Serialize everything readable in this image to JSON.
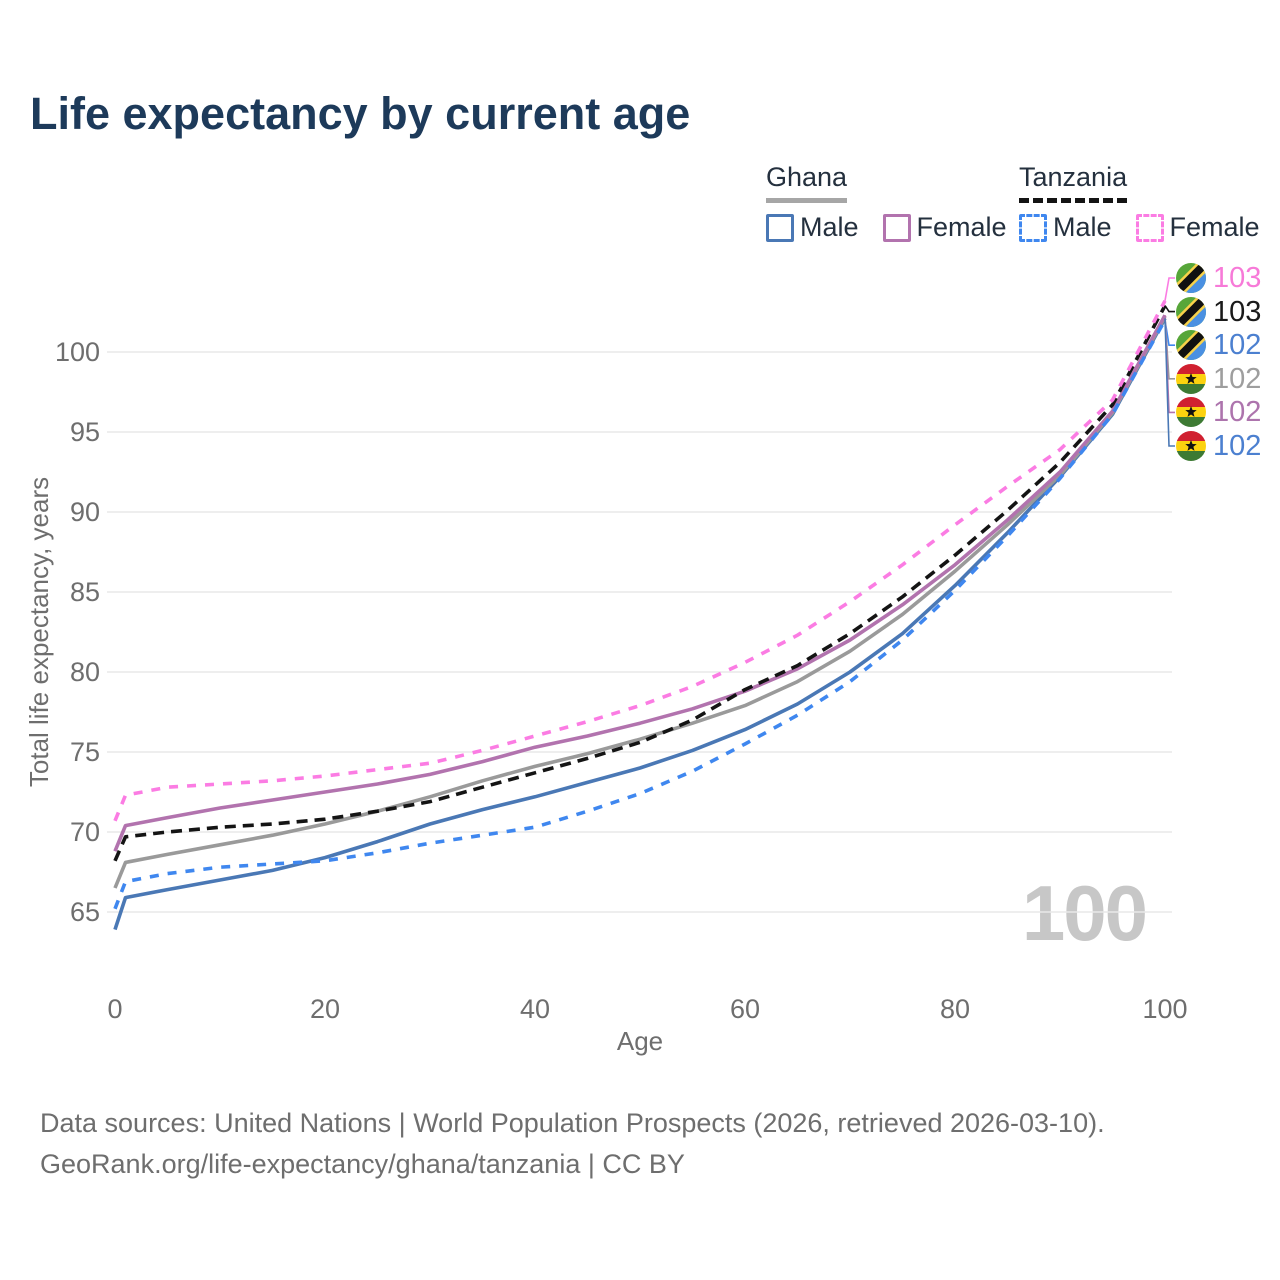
{
  "title": "Life expectancy by current age",
  "legend": {
    "groups": [
      {
        "key": "ghana",
        "country": "Ghana",
        "line_style": "solid",
        "underline_color": "#a6a6a6",
        "items": [
          {
            "label": "Male",
            "color": "#4a78b5",
            "dashed": false,
            "series": "gh_male"
          },
          {
            "label": "Female",
            "color": "#b273ae",
            "dashed": false,
            "series": "gh_female"
          }
        ]
      },
      {
        "key": "tanzania",
        "country": "Tanzania",
        "line_style": "dashed",
        "underline_color": "#141414",
        "items": [
          {
            "label": "Male",
            "color": "#3f87ef",
            "dashed": true,
            "series": "tz_male"
          },
          {
            "label": "Female",
            "color": "#fb7ce3",
            "dashed": true,
            "series": "tz_female"
          }
        ]
      }
    ]
  },
  "watermark": "100",
  "footer": {
    "line1": "Data sources: United Nations | World Population Prospects (2026, retrieved 2026-03-10).",
    "line2": "GeoRank.org/life-expectancy/ghana/tanzania | CC BY"
  },
  "chart_data": {
    "type": "line",
    "title": "Life expectancy by current age",
    "xlabel": "Age",
    "ylabel": "Total life expectancy, years",
    "x_ticks": [
      0,
      20,
      40,
      60,
      80,
      100
    ],
    "y_ticks": [
      65,
      70,
      75,
      80,
      85,
      90,
      95,
      100
    ],
    "xlim": [
      0,
      100
    ],
    "ylim": [
      63.5,
      103.5
    ],
    "grid": "horizontal-only",
    "legend_position": "top-right",
    "ages": [
      0,
      1,
      5,
      10,
      15,
      20,
      25,
      30,
      35,
      40,
      45,
      50,
      55,
      60,
      65,
      70,
      75,
      80,
      85,
      90,
      95,
      100
    ],
    "series": [
      {
        "key": "gh_male",
        "name": "Ghana Male",
        "country": "Ghana",
        "sex": "Male",
        "color": "#4a78b5",
        "dashed": false,
        "values": [
          63.9,
          65.9,
          66.4,
          67.0,
          67.6,
          68.4,
          69.4,
          70.5,
          71.4,
          72.2,
          73.1,
          74.0,
          75.1,
          76.4,
          78.0,
          80.0,
          82.4,
          85.4,
          88.7,
          92.2,
          96.1,
          102.1
        ]
      },
      {
        "key": "gh_total",
        "name": "Ghana Total",
        "country": "Ghana",
        "sex": "Both",
        "color": "#9a9a9a",
        "dashed": false,
        "values": [
          66.5,
          68.1,
          68.6,
          69.2,
          69.8,
          70.5,
          71.3,
          72.2,
          73.2,
          74.1,
          74.9,
          75.8,
          76.8,
          77.9,
          79.4,
          81.3,
          83.6,
          86.3,
          89.2,
          92.3,
          96.2,
          102.2
        ]
      },
      {
        "key": "gh_female",
        "name": "Ghana Female",
        "country": "Ghana",
        "sex": "Female",
        "color": "#b273ae",
        "dashed": false,
        "values": [
          68.8,
          70.4,
          70.9,
          71.5,
          72.0,
          72.5,
          73.0,
          73.6,
          74.4,
          75.3,
          76.0,
          76.8,
          77.7,
          78.8,
          80.2,
          82.0,
          84.2,
          86.7,
          89.5,
          92.5,
          96.3,
          102.3
        ]
      },
      {
        "key": "tz_male",
        "name": "Tanzania Male",
        "country": "Tanzania",
        "sex": "Male",
        "color": "#3f87ef",
        "dashed": true,
        "values": [
          65.2,
          66.9,
          67.4,
          67.8,
          68.0,
          68.2,
          68.7,
          69.3,
          69.8,
          70.3,
          71.3,
          72.4,
          73.8,
          75.5,
          77.3,
          79.4,
          82.0,
          85.1,
          88.5,
          92.1,
          96.1,
          102.0
        ]
      },
      {
        "key": "tz_total",
        "name": "Tanzania Total",
        "country": "Tanzania",
        "sex": "Both",
        "color": "#141414",
        "dashed": true,
        "values": [
          68.2,
          69.7,
          70.0,
          70.3,
          70.5,
          70.8,
          71.3,
          71.9,
          72.8,
          73.7,
          74.6,
          75.6,
          77.0,
          78.9,
          80.4,
          82.4,
          84.7,
          87.3,
          90.1,
          93.1,
          96.7,
          102.9
        ]
      },
      {
        "key": "tz_female",
        "name": "Tanzania Female",
        "country": "Tanzania",
        "sex": "Female",
        "color": "#fb7ce3",
        "dashed": true,
        "values": [
          70.7,
          72.3,
          72.8,
          73.0,
          73.2,
          73.5,
          73.9,
          74.3,
          75.1,
          76.0,
          76.9,
          77.9,
          79.1,
          80.6,
          82.3,
          84.4,
          86.7,
          89.2,
          91.6,
          93.9,
          97.0,
          103.2
        ]
      }
    ],
    "end_labels": [
      {
        "series": "tz_female",
        "label": "103",
        "flag": "tanzania",
        "color": "#f77ad8"
      },
      {
        "series": "tz_total",
        "label": "103",
        "flag": "tanzania",
        "color": "#1a1a1a"
      },
      {
        "series": "tz_male",
        "label": "102",
        "flag": "tanzania",
        "color": "#4c80d0"
      },
      {
        "series": "gh_total",
        "label": "102",
        "flag": "ghana",
        "color": "#9e9e9e"
      },
      {
        "series": "gh_female",
        "label": "102",
        "flag": "ghana",
        "color": "#ad74ad"
      },
      {
        "series": "gh_male",
        "label": "102",
        "flag": "ghana",
        "color": "#4c80d0"
      }
    ]
  }
}
